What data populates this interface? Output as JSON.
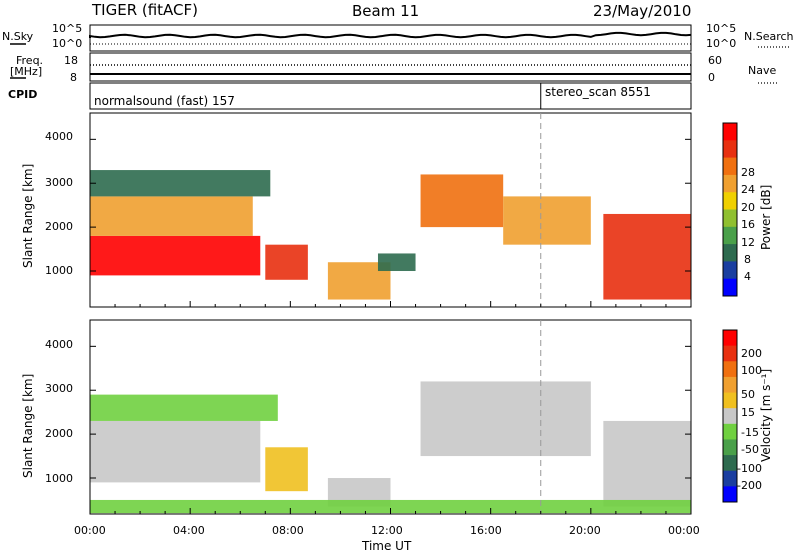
{
  "header": {
    "title": "TIGER (fitACF)",
    "beam": "Beam 11",
    "date": "23/May/2010"
  },
  "summary": {
    "nsky_label": "N.Sky",
    "nsearch_label": "N.Search",
    "noise_ticks_left": [
      "10^5",
      "10^0"
    ],
    "noise_ticks_right": [
      "10^5",
      "10^0"
    ],
    "freq_label": "Freq.",
    "freq_unit": "[MHz]",
    "freq_ticks": [
      "18",
      "8"
    ],
    "nave_label": "Nave",
    "nave_ticks": [
      "60",
      "0"
    ],
    "cpid_label": "CPID",
    "cpid_segments": [
      {
        "text": "normalsound (fast) 157",
        "start_hour": 0
      },
      {
        "text": "stereo_scan 8551",
        "start_hour": 18
      }
    ]
  },
  "axes": {
    "xlabel": "Time UT",
    "x_ticks": [
      "00:00",
      "04:00",
      "08:00",
      "12:00",
      "16:00",
      "20:00",
      "00:00"
    ],
    "ylabel": "Slant Range [km]",
    "y_ticks": [
      "1000",
      "2000",
      "3000",
      "4000"
    ]
  },
  "colorbars": {
    "power": {
      "label": "Power [dB]",
      "ticks": [
        "28",
        "24",
        "20",
        "16",
        "12",
        "8",
        "4"
      ],
      "colors": [
        "#0000ff",
        "#1a3ea0",
        "#2e6b4f",
        "#4aa04a",
        "#90c030",
        "#f0d000",
        "#f0a030",
        "#f07010",
        "#e83010",
        "#ff0000"
      ]
    },
    "velocity": {
      "label": "Velocity [m s⁻¹]",
      "ticks": [
        "200",
        "100",
        "50",
        "15",
        "-15",
        "-50",
        "-100",
        "-200"
      ],
      "colors": [
        "#0000ff",
        "#1a3ea0",
        "#2e6b4f",
        "#4aa04a",
        "#70d040",
        "#c8c8c8",
        "#f0c020",
        "#f0a030",
        "#f07010",
        "#e83010",
        "#ff0000"
      ]
    }
  },
  "chart_data": [
    {
      "type": "heatmap",
      "title": "",
      "xlabel": "Time UT",
      "ylabel": "Slant Range [km]",
      "xlim_hours": [
        0,
        24
      ],
      "ylim_km": [
        180,
        4600
      ],
      "colorbar_label": "Power [dB]",
      "colorbar_range": [
        0,
        30
      ],
      "regions": [
        {
          "t0": 0.0,
          "t1": 6.8,
          "r0": 900,
          "r1": 1800,
          "power_db": 28
        },
        {
          "t0": 0.0,
          "t1": 6.5,
          "r0": 1800,
          "r1": 2700,
          "power_db": 20
        },
        {
          "t0": 0.0,
          "t1": 7.2,
          "r0": 2700,
          "r1": 3300,
          "power_db": 8
        },
        {
          "t0": 7.0,
          "t1": 8.7,
          "r0": 800,
          "r1": 1600,
          "power_db": 26
        },
        {
          "t0": 9.5,
          "t1": 12.0,
          "r0": 350,
          "r1": 1200,
          "power_db": 20
        },
        {
          "t0": 11.5,
          "t1": 13.0,
          "r0": 1000,
          "r1": 1400,
          "power_db": 8
        },
        {
          "t0": 13.2,
          "t1": 16.5,
          "r0": 2000,
          "r1": 3200,
          "power_db": 22
        },
        {
          "t0": 16.5,
          "t1": 20.0,
          "r0": 1600,
          "r1": 2700,
          "power_db": 20
        },
        {
          "t0": 20.5,
          "t1": 24.0,
          "r0": 350,
          "r1": 2300,
          "power_db": 24
        }
      ]
    },
    {
      "type": "heatmap",
      "title": "",
      "xlabel": "Time UT",
      "ylabel": "Slant Range [km]",
      "xlim_hours": [
        0,
        24
      ],
      "ylim_km": [
        180,
        4600
      ],
      "colorbar_label": "Velocity [m s⁻¹]",
      "colorbar_range": [
        -250,
        250
      ],
      "regions": [
        {
          "t0": 0.0,
          "t1": 6.8,
          "r0": 900,
          "r1": 2300,
          "velocity_ms": 0
        },
        {
          "t0": 0.0,
          "t1": 7.5,
          "r0": 2300,
          "r1": 2900,
          "velocity_ms": -30
        },
        {
          "t0": 7.0,
          "t1": 8.7,
          "r0": 700,
          "r1": 1700,
          "velocity_ms": 60
        },
        {
          "t0": 9.5,
          "t1": 12.0,
          "r0": 350,
          "r1": 1000,
          "velocity_ms": 0
        },
        {
          "t0": 13.2,
          "t1": 20.0,
          "r0": 1500,
          "r1": 3200,
          "velocity_ms": 0
        },
        {
          "t0": 20.5,
          "t1": 24.0,
          "r0": 350,
          "r1": 2300,
          "velocity_ms": 0
        },
        {
          "t0": 0.0,
          "t1": 24.0,
          "r0": 200,
          "r1": 500,
          "velocity_ms": -40
        }
      ]
    }
  ]
}
